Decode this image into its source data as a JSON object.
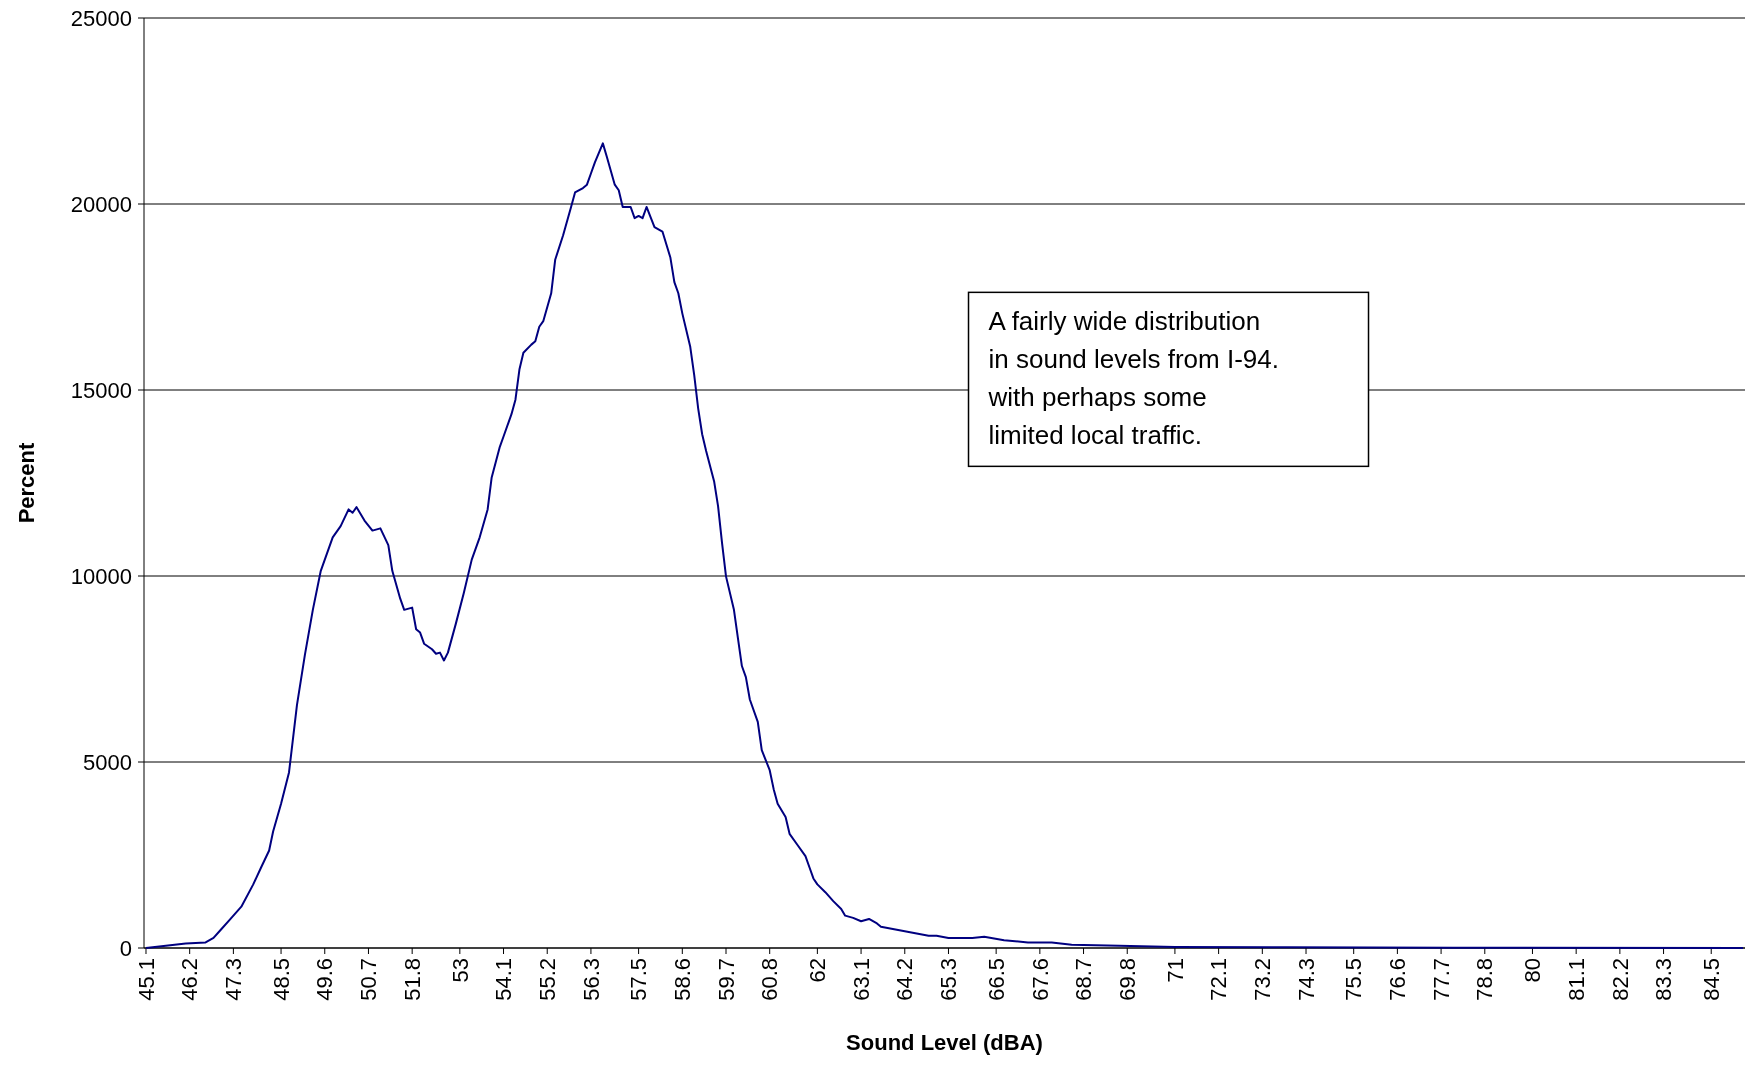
{
  "chart_data": {
    "type": "line",
    "xlabel": "Sound Level (dBA)",
    "ylabel": "Percent",
    "grid": "y",
    "marker": "none",
    "line_style": "solid",
    "annotations": [
      "A fairly wide distribution\nin sound levels from I-94.\nwith perhaps some\nlimited local traffic."
    ],
    "xlim": [
      45.05,
      85.35
    ],
    "xticks": [
      45.1,
      46.2,
      47.3,
      48.5,
      49.6,
      50.7,
      51.8,
      53,
      54.1,
      55.2,
      56.3,
      57.5,
      58.6,
      59.7,
      60.8,
      62,
      63.1,
      64.2,
      65.3,
      66.5,
      67.6,
      68.7,
      69.8,
      71,
      72.1,
      73.2,
      74.3,
      75.5,
      76.6,
      77.7,
      78.8,
      80,
      81.1,
      82.2,
      83.3,
      84.5
    ],
    "ylim": [
      0,
      25000
    ],
    "yticks": [
      0,
      5000,
      10000,
      15000,
      20000,
      25000
    ],
    "series": [
      {
        "color": "#000080",
        "x": [
          45.1,
          45.6,
          46.1,
          46.6,
          46.8,
          47.0,
          47.2,
          47.5,
          47.8,
          48.0,
          48.2,
          48.3,
          48.5,
          48.7,
          48.9,
          49.1,
          49.3,
          49.5,
          49.8,
          50.0,
          50.2,
          50.3,
          50.4,
          50.6,
          50.8,
          51.0,
          51.2,
          51.3,
          51.5,
          51.6,
          51.8,
          51.9,
          52.0,
          52.1,
          52.3,
          52.4,
          52.5,
          52.6,
          52.7,
          52.9,
          53.1,
          53.3,
          53.5,
          53.7,
          53.8,
          54.0,
          54.1,
          54.3,
          54.4,
          54.5,
          54.6,
          54.8,
          54.9,
          55.0,
          55.1,
          55.3,
          55.4,
          55.6,
          55.8,
          55.9,
          56.1,
          56.2,
          56.3,
          56.4,
          56.6,
          56.7,
          56.9,
          57.0,
          57.1,
          57.3,
          57.4,
          57.5,
          57.6,
          57.7,
          57.9,
          58.0,
          58.1,
          58.3,
          58.4,
          58.5,
          58.6,
          58.8,
          58.9,
          59.0,
          59.1,
          59.2,
          59.4,
          59.5,
          59.6,
          59.7,
          59.9,
          60.0,
          60.1,
          60.2,
          60.3,
          60.5,
          60.6,
          60.8,
          60.9,
          61.0,
          61.2,
          61.3,
          61.5,
          61.7,
          61.8,
          61.9,
          62.0,
          62.2,
          62.4,
          62.6,
          62.7,
          62.9,
          63.1,
          63.3,
          63.5,
          63.6,
          63.9,
          64.2,
          64.5,
          64.8,
          65.0,
          65.3,
          65.9,
          66.2,
          66.7,
          67.3,
          67.9,
          68.4,
          69.6,
          71.0,
          73.8,
          78.0,
          85.3
        ],
        "values": [
          0,
          60,
          120,
          150,
          270,
          510,
          750,
          1110,
          1710,
          2170,
          2620,
          3130,
          3880,
          4720,
          6530,
          7880,
          9090,
          10140,
          11040,
          11340,
          11790,
          11700,
          11850,
          11490,
          11220,
          11280,
          10830,
          10140,
          9390,
          9090,
          9150,
          8570,
          8480,
          8180,
          8030,
          7910,
          7940,
          7730,
          7940,
          8720,
          9540,
          10440,
          11040,
          11790,
          12640,
          13450,
          13750,
          14350,
          14740,
          15550,
          16000,
          16220,
          16310,
          16700,
          16850,
          17600,
          18500,
          19160,
          19920,
          20310,
          20430,
          20520,
          20820,
          21120,
          21630,
          21270,
          20520,
          20370,
          19920,
          19920,
          19620,
          19680,
          19620,
          19920,
          19380,
          19320,
          19260,
          18560,
          17900,
          17600,
          17060,
          16160,
          15400,
          14500,
          13810,
          13360,
          12550,
          11880,
          10890,
          9990,
          9090,
          8330,
          7580,
          7280,
          6680,
          6080,
          5320,
          4780,
          4270,
          3880,
          3520,
          3070,
          2770,
          2470,
          2170,
          1870,
          1710,
          1500,
          1260,
          1050,
          870,
          810,
          720,
          780,
          660,
          570,
          510,
          450,
          390,
          330,
          330,
          270,
          270,
          300,
          210,
          150,
          150,
          90,
          60,
          30,
          20,
          10,
          0
        ]
      }
    ]
  }
}
